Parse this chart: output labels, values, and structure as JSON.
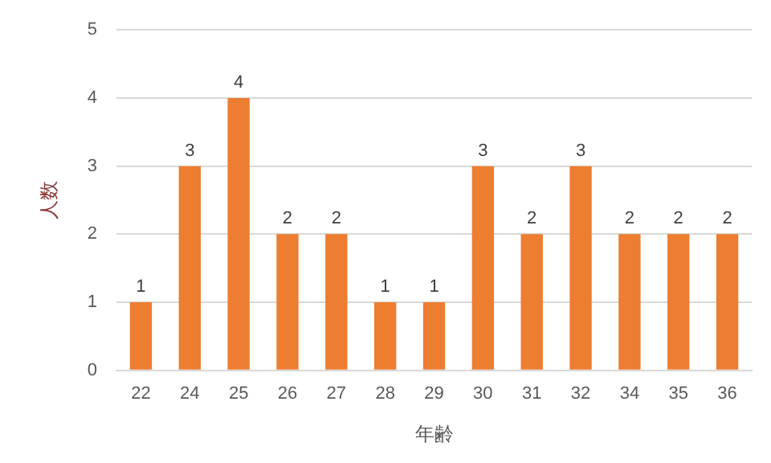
{
  "chart_data": {
    "type": "bar",
    "xlabel": "年齢",
    "ylabel": "人数",
    "categories": [
      "22",
      "24",
      "25",
      "26",
      "27",
      "28",
      "29",
      "30",
      "31",
      "32",
      "34",
      "35",
      "36"
    ],
    "values": [
      1,
      3,
      4,
      2,
      2,
      1,
      1,
      3,
      2,
      3,
      2,
      2,
      2
    ],
    "color": "#ed7d31",
    "ylim": [
      0,
      5
    ],
    "yticks": [
      0,
      1,
      2,
      3,
      4,
      5
    ],
    "grid": "y",
    "data_labels": true,
    "legend": false
  }
}
